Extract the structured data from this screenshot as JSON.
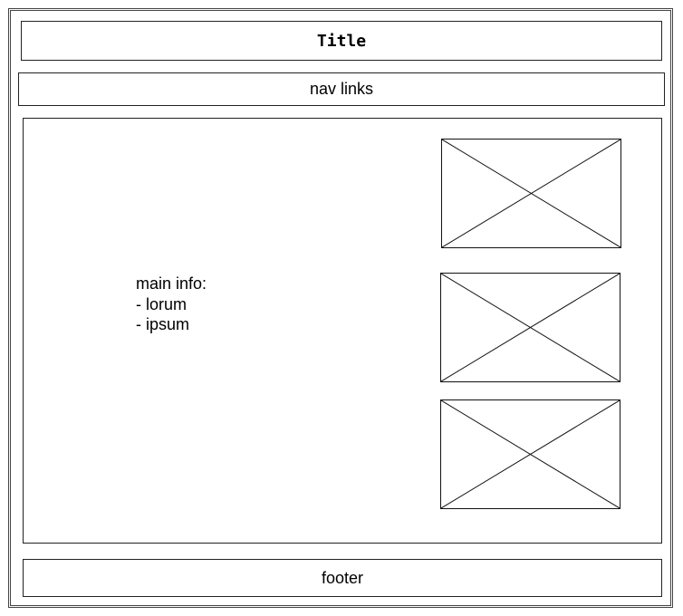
{
  "header": {
    "title": "Title"
  },
  "nav": {
    "label": "nav links"
  },
  "main": {
    "info_heading": "main info:",
    "info_items": [
      "- lorum",
      "- ipsum"
    ],
    "image_placeholders": [
      {
        "icon": "image-placeholder-icon"
      },
      {
        "icon": "image-placeholder-icon"
      },
      {
        "icon": "image-placeholder-icon"
      }
    ]
  },
  "footer": {
    "label": "footer"
  }
}
